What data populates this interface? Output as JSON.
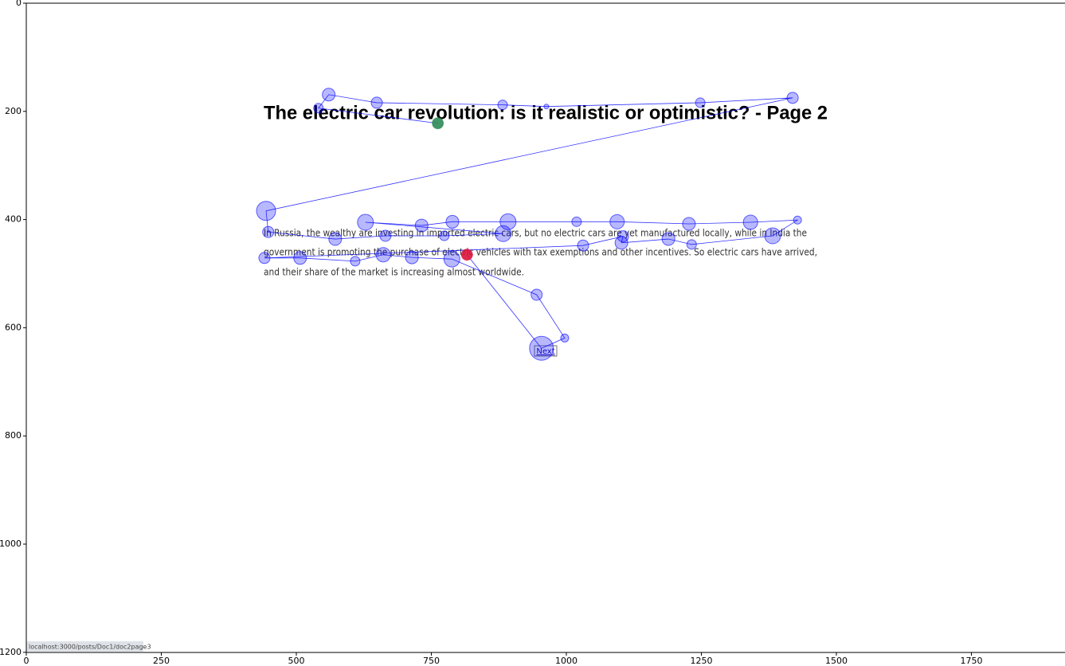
{
  "chart_data": {
    "type": "scanpath",
    "x": [
      762,
      541,
      560,
      649,
      882,
      963,
      1248,
      1419,
      444,
      448,
      572,
      665,
      774,
      883,
      628,
      732,
      789,
      892,
      1019,
      1094,
      1227,
      1341,
      1428,
      1382,
      1232,
      1189,
      1102,
      1105,
      1031,
      441,
      507,
      609,
      661,
      714,
      788,
      945,
      997,
      954,
      816
    ],
    "y": [
      222,
      194,
      169,
      184,
      188,
      191,
      184,
      175,
      384,
      423,
      436,
      430,
      430,
      426,
      405,
      411,
      404,
      404,
      404,
      404,
      408,
      405,
      401,
      430,
      446,
      436,
      443,
      431,
      448,
      471,
      471,
      477,
      465,
      470,
      473,
      539,
      619,
      638,
      465
    ],
    "sizes": [
      7,
      6,
      8,
      7,
      6,
      3,
      6,
      7,
      12,
      7,
      8,
      7,
      6,
      10,
      10,
      8,
      8,
      10,
      6,
      9,
      8,
      9,
      5,
      10,
      6,
      8,
      8,
      7,
      7,
      7,
      8,
      6,
      9,
      8,
      10,
      7,
      5,
      15,
      7
    ],
    "color": "#0000ff",
    "start_color": "#2e8b57",
    "end_color": "#dc143c",
    "xlim": [
      0,
      1920
    ],
    "ylim": [
      1200,
      0
    ],
    "xticks": [
      0,
      250,
      500,
      750,
      1000,
      1250,
      1500,
      1750
    ],
    "yticks": [
      0,
      200,
      400,
      600,
      800,
      1000,
      1200
    ]
  },
  "page": {
    "title": "The electric car revolution: is it realistic or optimistic? - Page 2",
    "paragraph": [
      "In Russia, the wealthy are investing in imported electric cars, but no electric cars are yet manufactured locally, while in India the",
      "government is promoting the purchase of electric vehicles with tax exemptions and other incentives. So electric cars have arrived,",
      "and their share of the market is increasing almost worldwide."
    ],
    "link": "Next",
    "status_url": "localhost:3000/posts/Doc1/doc2page3"
  }
}
